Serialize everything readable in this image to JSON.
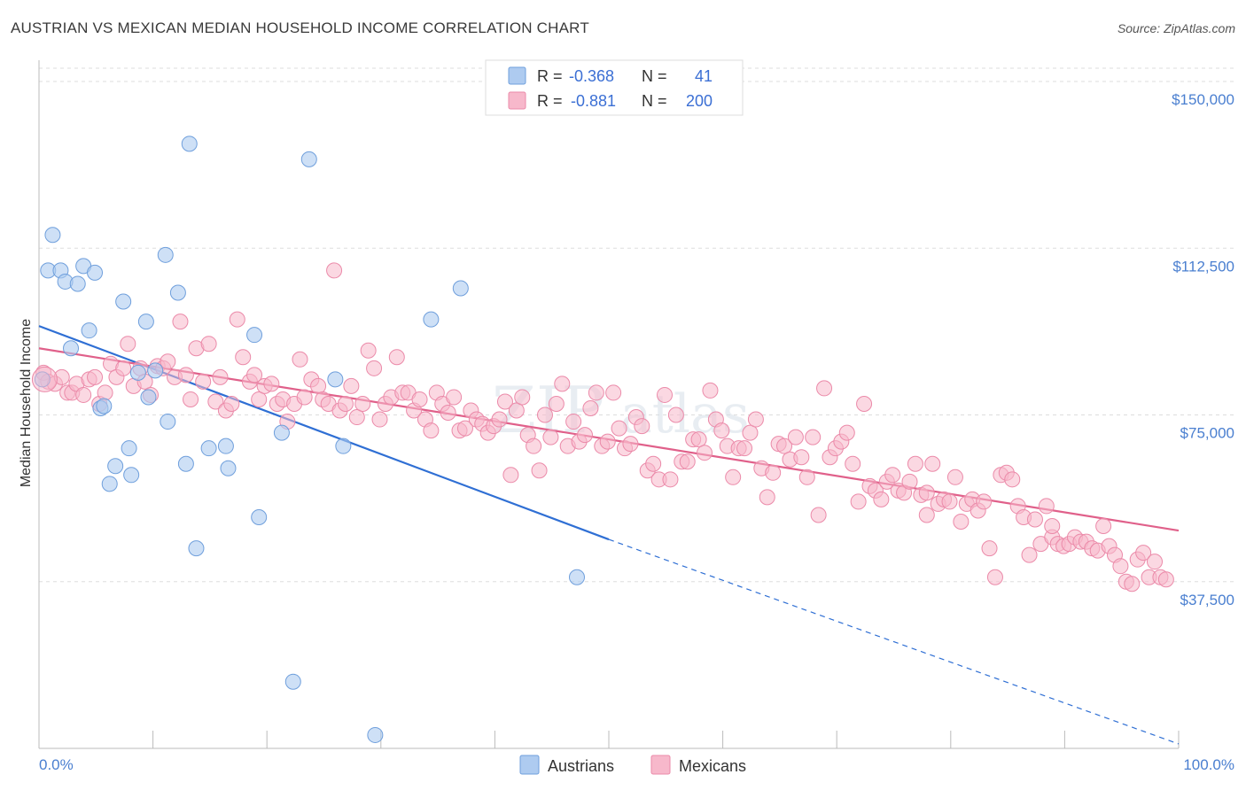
{
  "header": {
    "title": "AUSTRIAN VS MEXICAN MEDIAN HOUSEHOLD INCOME CORRELATION CHART",
    "source": "Source: ZipAtlas.com"
  },
  "watermark": {
    "zip": "ZIP",
    "atlas": "atlas"
  },
  "legend": {
    "rows": [
      {
        "r_label": "R =",
        "r_value": "-0.368",
        "n_label": "N =",
        "n_value": "41",
        "color": "#aecbf0"
      },
      {
        "r_label": "R =",
        "r_value": "-0.881",
        "n_label": "N =",
        "n_value": "200",
        "color": "#f7b8cb"
      }
    ]
  },
  "bottom_legend": [
    {
      "label": "Austrians",
      "color": "#aecbf0"
    },
    {
      "label": "Mexicans",
      "color": "#f7b8cb"
    }
  ],
  "colors": {
    "austrian_fill": "#aecbf0",
    "austrian_stroke": "#6f9fdc",
    "austrian_line": "#2f6fd4",
    "mexican_fill": "#f7b8cb",
    "mexican_stroke": "#eb8aa9",
    "mexican_line": "#e0608a",
    "grid": "#dddddd",
    "tick_label": "#4a7fd0"
  },
  "chart_data": {
    "type": "scatter",
    "title": "AUSTRIAN VS MEXICAN MEDIAN HOUSEHOLD INCOME CORRELATION CHART",
    "xlabel": "",
    "ylabel": "Median Household Income",
    "xlim": [
      0,
      100
    ],
    "ylim": [
      0,
      153000
    ],
    "x_tick_labels": [
      "0.0%",
      "100.0%"
    ],
    "y_ticks": [
      37500,
      75000,
      112500,
      150000
    ],
    "y_tick_labels": [
      "$37,500",
      "$75,000",
      "$112,500",
      "$150,000"
    ],
    "grid": true,
    "legend_position": "top-center",
    "series": [
      {
        "name": "Austrians",
        "trend": {
          "x": [
            0,
            50
          ],
          "y": [
            95000,
            47000
          ],
          "dashed_to": [
            100,
            1000
          ]
        },
        "points": [
          [
            0.3,
            83000
          ],
          [
            0.8,
            107500
          ],
          [
            1.2,
            115500
          ],
          [
            1.9,
            107500
          ],
          [
            2.3,
            105000
          ],
          [
            3.4,
            104500
          ],
          [
            3.9,
            108500
          ],
          [
            4.4,
            94000
          ],
          [
            4.9,
            107000
          ],
          [
            2.8,
            90000
          ],
          [
            5.4,
            76500
          ],
          [
            5.7,
            77000
          ],
          [
            6.2,
            59500
          ],
          [
            6.7,
            63500
          ],
          [
            7.4,
            100500
          ],
          [
            8.1,
            61500
          ],
          [
            7.9,
            67500
          ],
          [
            8.7,
            84500
          ],
          [
            9.4,
            96000
          ],
          [
            9.6,
            79000
          ],
          [
            10.2,
            85000
          ],
          [
            11.1,
            111000
          ],
          [
            11.3,
            73500
          ],
          [
            12.2,
            102500
          ],
          [
            12.9,
            64000
          ],
          [
            13.2,
            136000
          ],
          [
            13.8,
            45000
          ],
          [
            14.9,
            67500
          ],
          [
            16.4,
            68000
          ],
          [
            16.6,
            63000
          ],
          [
            18.9,
            93000
          ],
          [
            19.3,
            52000
          ],
          [
            21.3,
            71000
          ],
          [
            22.3,
            15000
          ],
          [
            23.7,
            132500
          ],
          [
            26.0,
            83000
          ],
          [
            26.7,
            68000
          ],
          [
            29.5,
            3000
          ],
          [
            34.4,
            96500
          ],
          [
            37.0,
            103500
          ],
          [
            47.2,
            38500
          ]
        ]
      },
      {
        "name": "Mexicans",
        "trend": {
          "x": [
            0,
            100
          ],
          "y": [
            90000,
            49000
          ]
        },
        "points": [
          [
            0.4,
            84500
          ],
          [
            0.8,
            82500
          ],
          [
            1.4,
            82000
          ],
          [
            2.0,
            83500
          ],
          [
            2.5,
            80000
          ],
          [
            2.9,
            80000
          ],
          [
            3.3,
            82000
          ],
          [
            3.9,
            79500
          ],
          [
            4.4,
            83000
          ],
          [
            4.9,
            83500
          ],
          [
            5.3,
            77500
          ],
          [
            5.8,
            80000
          ],
          [
            6.3,
            86500
          ],
          [
            6.8,
            83500
          ],
          [
            7.4,
            85500
          ],
          [
            7.8,
            91000
          ],
          [
            8.3,
            81500
          ],
          [
            8.9,
            85500
          ],
          [
            9.3,
            82500
          ],
          [
            9.8,
            79500
          ],
          [
            10.4,
            86000
          ],
          [
            10.9,
            85500
          ],
          [
            11.3,
            87000
          ],
          [
            11.9,
            83500
          ],
          [
            12.4,
            96000
          ],
          [
            12.9,
            84000
          ],
          [
            13.3,
            78500
          ],
          [
            13.8,
            90000
          ],
          [
            14.4,
            82500
          ],
          [
            14.9,
            91000
          ],
          [
            15.5,
            78000
          ],
          [
            15.9,
            83500
          ],
          [
            16.4,
            76000
          ],
          [
            16.9,
            77500
          ],
          [
            17.4,
            96500
          ],
          [
            17.9,
            88000
          ],
          [
            18.5,
            82500
          ],
          [
            18.9,
            84000
          ],
          [
            19.3,
            78500
          ],
          [
            19.8,
            81500
          ],
          [
            20.4,
            82000
          ],
          [
            20.9,
            77500
          ],
          [
            21.4,
            78500
          ],
          [
            21.8,
            73500
          ],
          [
            22.4,
            77500
          ],
          [
            22.9,
            87500
          ],
          [
            23.3,
            79000
          ],
          [
            23.9,
            83000
          ],
          [
            24.5,
            81500
          ],
          [
            24.9,
            78500
          ],
          [
            25.4,
            77500
          ],
          [
            25.9,
            107500
          ],
          [
            26.4,
            76000
          ],
          [
            26.9,
            77500
          ],
          [
            27.4,
            81500
          ],
          [
            27.9,
            74500
          ],
          [
            28.4,
            77500
          ],
          [
            28.9,
            89500
          ],
          [
            29.4,
            85500
          ],
          [
            29.9,
            74000
          ],
          [
            30.4,
            77500
          ],
          [
            30.9,
            79000
          ],
          [
            31.4,
            88000
          ],
          [
            31.9,
            80000
          ],
          [
            32.4,
            80000
          ],
          [
            32.9,
            76000
          ],
          [
            33.4,
            78500
          ],
          [
            33.9,
            74000
          ],
          [
            34.4,
            71500
          ],
          [
            34.9,
            80000
          ],
          [
            35.4,
            77500
          ],
          [
            35.9,
            75500
          ],
          [
            36.4,
            79000
          ],
          [
            36.9,
            71500
          ],
          [
            37.4,
            72000
          ],
          [
            37.9,
            76000
          ],
          [
            38.4,
            74000
          ],
          [
            38.9,
            73000
          ],
          [
            39.4,
            71000
          ],
          [
            39.9,
            72500
          ],
          [
            40.4,
            74000
          ],
          [
            40.9,
            78000
          ],
          [
            41.4,
            61500
          ],
          [
            41.9,
            76000
          ],
          [
            42.4,
            79000
          ],
          [
            42.9,
            70500
          ],
          [
            43.4,
            68000
          ],
          [
            43.9,
            62500
          ],
          [
            44.4,
            75000
          ],
          [
            44.9,
            70000
          ],
          [
            45.4,
            77500
          ],
          [
            45.9,
            82000
          ],
          [
            46.4,
            68000
          ],
          [
            46.9,
            73500
          ],
          [
            47.4,
            69000
          ],
          [
            47.9,
            70500
          ],
          [
            48.4,
            76500
          ],
          [
            48.9,
            80000
          ],
          [
            49.4,
            68000
          ],
          [
            49.9,
            69000
          ],
          [
            50.4,
            80000
          ],
          [
            50.9,
            72000
          ],
          [
            51.4,
            67500
          ],
          [
            51.9,
            68500
          ],
          [
            52.4,
            74500
          ],
          [
            52.9,
            72500
          ],
          [
            53.4,
            62500
          ],
          [
            53.9,
            64000
          ],
          [
            54.4,
            60500
          ],
          [
            54.9,
            79500
          ],
          [
            55.4,
            60500
          ],
          [
            55.9,
            75000
          ],
          [
            56.4,
            64500
          ],
          [
            56.9,
            64500
          ],
          [
            57.4,
            69500
          ],
          [
            57.9,
            69500
          ],
          [
            58.4,
            66500
          ],
          [
            58.9,
            80500
          ],
          [
            59.4,
            74000
          ],
          [
            59.9,
            71500
          ],
          [
            60.4,
            68000
          ],
          [
            60.9,
            61000
          ],
          [
            61.4,
            67500
          ],
          [
            61.9,
            67500
          ],
          [
            62.4,
            71000
          ],
          [
            62.9,
            74000
          ],
          [
            63.4,
            63000
          ],
          [
            63.9,
            56500
          ],
          [
            64.4,
            62000
          ],
          [
            64.9,
            68500
          ],
          [
            65.4,
            68000
          ],
          [
            65.9,
            65000
          ],
          [
            66.4,
            70000
          ],
          [
            66.9,
            65500
          ],
          [
            67.4,
            61000
          ],
          [
            67.9,
            70000
          ],
          [
            68.4,
            52500
          ],
          [
            68.9,
            81000
          ],
          [
            69.4,
            65500
          ],
          [
            69.9,
            67500
          ],
          [
            70.4,
            69000
          ],
          [
            70.9,
            71000
          ],
          [
            71.4,
            64000
          ],
          [
            71.9,
            55500
          ],
          [
            72.4,
            77500
          ],
          [
            72.9,
            59000
          ],
          [
            73.4,
            58000
          ],
          [
            73.9,
            56000
          ],
          [
            74.4,
            60000
          ],
          [
            74.9,
            61500
          ],
          [
            75.4,
            58000
          ],
          [
            75.9,
            57500
          ],
          [
            76.4,
            60000
          ],
          [
            76.9,
            64000
          ],
          [
            77.4,
            57000
          ],
          [
            77.9,
            57500
          ],
          [
            78.4,
            64000
          ],
          [
            78.9,
            55000
          ],
          [
            79.4,
            56000
          ],
          [
            79.9,
            55500
          ],
          [
            80.4,
            61000
          ],
          [
            80.9,
            51000
          ],
          [
            81.4,
            55000
          ],
          [
            81.9,
            56000
          ],
          [
            82.4,
            53500
          ],
          [
            82.9,
            55500
          ],
          [
            83.4,
            45000
          ],
          [
            83.9,
            38500
          ],
          [
            84.4,
            61500
          ],
          [
            84.9,
            62000
          ],
          [
            85.4,
            60500
          ],
          [
            85.9,
            54500
          ],
          [
            86.4,
            52000
          ],
          [
            86.9,
            43500
          ],
          [
            87.4,
            51500
          ],
          [
            87.9,
            46000
          ],
          [
            88.4,
            54500
          ],
          [
            88.9,
            47500
          ],
          [
            89.4,
            46000
          ],
          [
            89.9,
            45500
          ],
          [
            90.4,
            46000
          ],
          [
            90.9,
            47500
          ],
          [
            91.4,
            46500
          ],
          [
            91.9,
            46500
          ],
          [
            92.4,
            45000
          ],
          [
            92.9,
            44500
          ],
          [
            93.4,
            50000
          ],
          [
            93.9,
            45500
          ],
          [
            94.4,
            43500
          ],
          [
            94.9,
            41000
          ],
          [
            95.4,
            37500
          ],
          [
            95.9,
            37000
          ],
          [
            96.4,
            42500
          ],
          [
            96.9,
            44000
          ],
          [
            97.4,
            38500
          ],
          [
            97.9,
            42000
          ],
          [
            98.4,
            38500
          ],
          [
            98.9,
            38000
          ],
          [
            88.9,
            50000
          ],
          [
            77.9,
            52500
          ]
        ]
      }
    ]
  }
}
